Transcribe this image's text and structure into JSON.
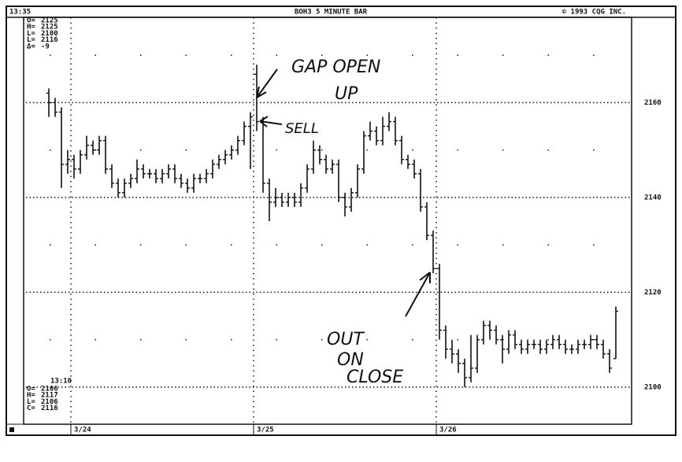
{
  "chart_data": {
    "type": "ohlc",
    "time": "13:35",
    "title": "BOH3 5 MINUTE BAR",
    "copyright": "© 1993 CQG INC.",
    "info_top": [
      {
        "label": "O=",
        "value": 2125
      },
      {
        "label": "H=",
        "value": 2125
      },
      {
        "label": "L=",
        "value": 2100
      },
      {
        "label": "L=",
        "value": 2116
      },
      {
        "label": "Δ=",
        "value": -9
      }
    ],
    "info_bottom_time": "13:10",
    "info_bottom": [
      {
        "label": "O=",
        "value": 2106
      },
      {
        "label": "H=",
        "value": 2117
      },
      {
        "label": "L=",
        "value": 2106
      },
      {
        "label": "C=",
        "value": 2116
      }
    ],
    "annotations": [
      "GAP OPEN",
      "UP",
      "SELL",
      "OUT",
      "ON",
      "CLOSE"
    ],
    "opens": [
      2162,
      2160,
      2158,
      2147,
      2148,
      2146,
      2149,
      2151,
      2150,
      2152,
      2146,
      2143,
      2141,
      2143,
      2144,
      2146,
      2145,
      2145,
      2144,
      2145,
      2146,
      2144,
      2143,
      2142,
      2144,
      2144,
      2145,
      2147,
      2148,
      2149,
      2150,
      2152,
      2155,
      2166,
      2156,
      2143,
      2139,
      2140,
      2139,
      2140,
      2139,
      2142,
      2146,
      2150,
      2148,
      2146,
      2147,
      2140,
      2138,
      2141,
      2146,
      2153,
      2154,
      2152,
      2155,
      2156,
      2152,
      2148,
      2147,
      2145,
      2138,
      2132,
      2125,
      2112,
      2108,
      2107,
      2105,
      2102,
      2104,
      2110,
      2113,
      2112,
      2110,
      2108,
      2111,
      2109,
      2108,
      2109,
      2109,
      2108,
      2109,
      2110,
      2109,
      2108,
      2108,
      2109,
      2109,
      2110,
      2109,
      2107,
      2106
    ],
    "highs": [
      2163,
      2161,
      2159,
      2150,
      2149,
      2150,
      2153,
      2152,
      2153,
      2153,
      2147,
      2144,
      2144,
      2145,
      2148,
      2147,
      2146,
      2146,
      2146,
      2147,
      2147,
      2145,
      2144,
      2145,
      2145,
      2146,
      2148,
      2149,
      2150,
      2151,
      2153,
      2156,
      2158,
      2168,
      2157,
      2144,
      2142,
      2141,
      2141,
      2141,
      2143,
      2147,
      2152,
      2151,
      2149,
      2148,
      2148,
      2141,
      2142,
      2147,
      2154,
      2156,
      2155,
      2157,
      2158,
      2157,
      2153,
      2149,
      2148,
      2146,
      2139,
      2133,
      2126,
      2113,
      2110,
      2108,
      2106,
      2111,
      2111,
      2114,
      2114,
      2113,
      2111,
      2112,
      2112,
      2110,
      2110,
      2110,
      2110,
      2110,
      2111,
      2111,
      2110,
      2109,
      2110,
      2110,
      2111,
      2111,
      2110,
      2108,
      2117
    ],
    "lows": [
      2157,
      2157,
      2142,
      2145,
      2144,
      2145,
      2148,
      2149,
      2149,
      2145,
      2142,
      2140,
      2140,
      2142,
      2143,
      2144,
      2144,
      2143,
      2143,
      2144,
      2143,
      2142,
      2141,
      2141,
      2143,
      2143,
      2144,
      2146,
      2147,
      2148,
      2149,
      2151,
      2146,
      2154,
      2141,
      2135,
      2138,
      2138,
      2138,
      2138,
      2138,
      2141,
      2145,
      2147,
      2145,
      2145,
      2139,
      2136,
      2137,
      2140,
      2145,
      2152,
      2151,
      2151,
      2154,
      2151,
      2147,
      2146,
      2144,
      2137,
      2131,
      2124,
      2110,
      2106,
      2105,
      2103,
      2100,
      2101,
      2103,
      2109,
      2110,
      2109,
      2105,
      2107,
      2108,
      2107,
      2107,
      2108,
      2107,
      2107,
      2108,
      2108,
      2107,
      2107,
      2107,
      2108,
      2108,
      2108,
      2106,
      2103,
      2106
    ],
    "closes": [
      2160,
      2158,
      2147,
      2148,
      2146,
      2149,
      2151,
      2150,
      2152,
      2146,
      2143,
      2141,
      2143,
      2144,
      2146,
      2145,
      2145,
      2144,
      2145,
      2146,
      2144,
      2143,
      2142,
      2144,
      2144,
      2145,
      2147,
      2148,
      2149,
      2150,
      2152,
      2155,
      2157,
      2156,
      2143,
      2139,
      2140,
      2139,
      2140,
      2139,
      2142,
      2146,
      2150,
      2148,
      2146,
      2147,
      2140,
      2138,
      2141,
      2146,
      2153,
      2154,
      2152,
      2155,
      2156,
      2152,
      2148,
      2147,
      2145,
      2138,
      2132,
      2125,
      2112,
      2108,
      2107,
      2105,
      2102,
      2104,
      2110,
      2113,
      2112,
      2110,
      2108,
      2111,
      2109,
      2108,
      2109,
      2109,
      2108,
      2109,
      2110,
      2109,
      2108,
      2108,
      2109,
      2109,
      2110,
      2109,
      2107,
      2104,
      2116
    ],
    "xlim": [
      -3.625,
      92.25
    ],
    "xticks": [
      {
        "value": 4,
        "label": "3/24"
      },
      {
        "value": 33,
        "label": "3/25"
      },
      {
        "value": 62,
        "label": "3/26"
      }
    ],
    "ylim": [
      2092.5,
      2178
    ],
    "yticks": [
      2100,
      2120,
      2140,
      2160
    ],
    "minor_yticks": [
      2110,
      2130,
      2150,
      2170
    ],
    "grid": true,
    "color": "#111111"
  }
}
